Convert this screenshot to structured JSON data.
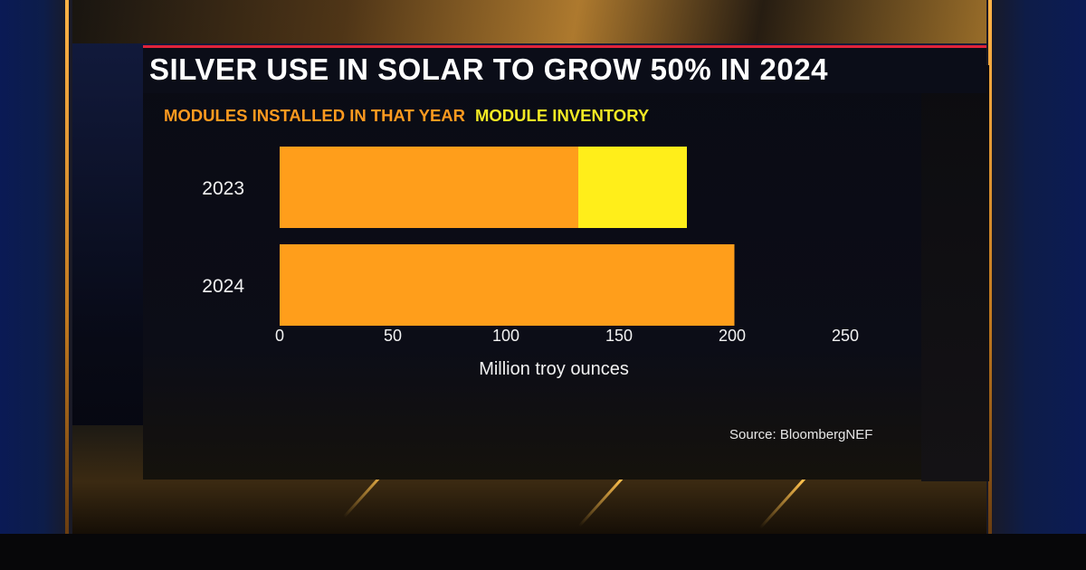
{
  "title": "SILVER USE IN SOLAR TO GROW 50% IN 2024",
  "source": "Source: BloombergNEF",
  "colors": {
    "installed": "#ff9e1b",
    "inventory": "#ffee1a",
    "installed_label": "#ff9a1f",
    "inventory_label": "#f3ea24",
    "text": "#f2f2f2",
    "accent": "#e0233a"
  },
  "chart_data": {
    "type": "bar",
    "orientation": "horizontal",
    "stacked": true,
    "categories": [
      "2023",
      "2024"
    ],
    "series": [
      {
        "name": "MODULES INSTALLED IN THAT YEAR",
        "values": [
          132,
          201
        ]
      },
      {
        "name": "MODULE INVENTORY",
        "values": [
          48,
          0
        ]
      }
    ],
    "xlabel": "Million troy ounces",
    "ylabel": "",
    "xlim": [
      0,
      250
    ],
    "xticks": [
      "0",
      "50",
      "100",
      "150",
      "200",
      "250"
    ],
    "xtick_values": [
      0,
      50,
      100,
      150,
      200,
      250
    ],
    "legend": "top-left",
    "grid": false
  }
}
